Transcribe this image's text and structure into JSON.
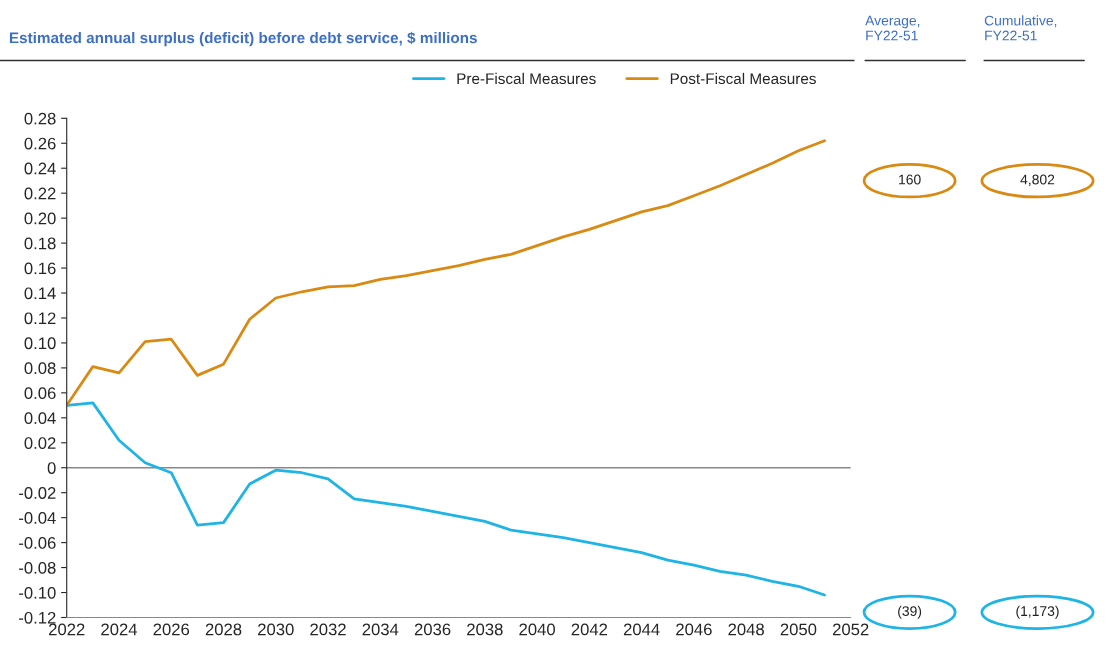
{
  "chart_data": {
    "type": "line",
    "title": "Estimated annual surplus (deficit) before debt service, $ millions",
    "x": [
      2022,
      2023,
      2024,
      2025,
      2026,
      2027,
      2028,
      2029,
      2030,
      2031,
      2032,
      2033,
      2034,
      2035,
      2036,
      2037,
      2038,
      2039,
      2040,
      2041,
      2042,
      2043,
      2044,
      2045,
      2046,
      2047,
      2048,
      2049,
      2050,
      2051
    ],
    "series": [
      {
        "name": "Pre-Fiscal Measures",
        "color": "#1fb4e6",
        "values": [
          0.05,
          0.052,
          0.022,
          0.004,
          -0.004,
          -0.046,
          -0.044,
          -0.013,
          -0.002,
          -0.004,
          -0.009,
          -0.025,
          -0.028,
          -0.031,
          -0.035,
          -0.039,
          -0.043,
          -0.05,
          -0.053,
          -0.056,
          -0.06,
          -0.064,
          -0.068,
          -0.074,
          -0.078,
          -0.083,
          -0.086,
          -0.091,
          -0.095,
          -0.102
        ]
      },
      {
        "name": "Post-Fiscal Measures",
        "color": "#d98a12",
        "values": [
          0.05,
          0.081,
          0.076,
          0.101,
          0.103,
          0.074,
          0.083,
          0.119,
          0.136,
          0.141,
          0.145,
          0.146,
          0.151,
          0.154,
          0.158,
          0.162,
          0.167,
          0.171,
          0.178,
          0.185,
          0.191,
          0.198,
          0.205,
          0.21,
          0.218,
          0.226,
          0.235,
          0.244,
          0.254,
          0.262
        ]
      }
    ],
    "xlim": [
      2022,
      2052
    ],
    "xticks": [
      2022,
      2024,
      2026,
      2028,
      2030,
      2032,
      2034,
      2036,
      2038,
      2040,
      2042,
      2044,
      2046,
      2048,
      2050,
      2052
    ],
    "ylim": [
      -0.12,
      0.28
    ],
    "yticks": [
      {
        "value": -0.12,
        "label": "-0.12"
      },
      {
        "value": -0.1,
        "label": "-0.10"
      },
      {
        "value": -0.08,
        "label": "-0.08"
      },
      {
        "value": -0.06,
        "label": "-0.06"
      },
      {
        "value": -0.04,
        "label": "-0.04"
      },
      {
        "value": -0.02,
        "label": "-0.02"
      },
      {
        "value": 0,
        "label": "0"
      },
      {
        "value": 0.02,
        "label": "0.02"
      },
      {
        "value": 0.04,
        "label": "0.04"
      },
      {
        "value": 0.06,
        "label": "0.06"
      },
      {
        "value": 0.08,
        "label": "0.08"
      },
      {
        "value": 0.1,
        "label": "0.10"
      },
      {
        "value": 0.12,
        "label": "0.12"
      },
      {
        "value": 0.14,
        "label": "0.14"
      },
      {
        "value": 0.16,
        "label": "0.16"
      },
      {
        "value": 0.18,
        "label": "0.18"
      },
      {
        "value": 0.2,
        "label": "0.20"
      },
      {
        "value": 0.22,
        "label": "0.22"
      },
      {
        "value": 0.24,
        "label": "0.24"
      },
      {
        "value": 0.26,
        "label": "0.26"
      },
      {
        "value": 0.28,
        "label": "0.28"
      }
    ],
    "ref_lines": [
      {
        "axis": "y",
        "value": 0,
        "color": "#888888"
      }
    ],
    "grid": false,
    "legend": "top",
    "marker": "none",
    "line_style": "solid",
    "annotations": [
      "Average,\nFY22-51",
      "Cumulative,\nFY22-51",
      "160",
      "4,802",
      "(39)",
      "(1,173)"
    ]
  }
}
